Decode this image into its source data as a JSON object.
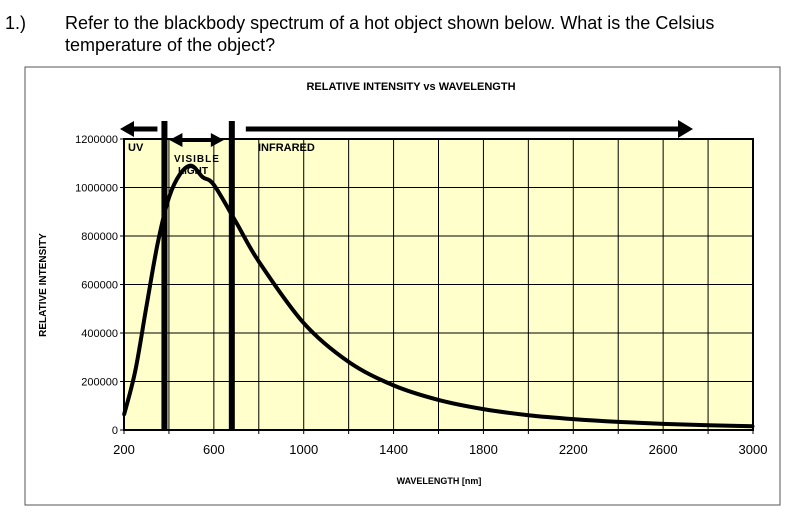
{
  "question": {
    "number": "1.)",
    "text": "Refer to the blackbody spectrum of a hot object shown below.  What is the Celsius temperature of the object?"
  },
  "chart_data": {
    "type": "line",
    "title": "RELATIVE INTENSITY vs WAVELENGTH",
    "xlabel": "WAVELENGTH [nm]",
    "ylabel": "RELATIVE INTENSITY",
    "xlim": [
      200,
      3000
    ],
    "ylim": [
      0,
      1200000
    ],
    "xticks": [
      200,
      600,
      1000,
      1400,
      1800,
      2200,
      2600,
      3000
    ],
    "yticks": [
      0,
      200000,
      400000,
      600000,
      800000,
      1000000,
      1200000
    ],
    "x_grid_step": 200,
    "grid": true,
    "plot_background": "#FFFFCC",
    "line_color": "#000000",
    "x": [
      200,
      250,
      300,
      350,
      400,
      450,
      500,
      550,
      600,
      700,
      800,
      1000,
      1200,
      1400,
      1600,
      1800,
      2000,
      2200,
      2400,
      2600,
      2800,
      3000
    ],
    "y": [
      62000,
      243000,
      510000,
      770000,
      958000,
      1056000,
      1090000,
      1043000,
      1011000,
      855000,
      695000,
      441000,
      281000,
      184000,
      124000,
      86000,
      61000,
      45000,
      33500,
      25500,
      19700,
      15500
    ],
    "annotations": {
      "region_boundaries_nm": [
        380,
        680
      ],
      "uv_label": "UV",
      "visible_label_1": "VISIBLE",
      "visible_label_2": "LIGHT",
      "infrared_label": "INFRARED"
    }
  }
}
